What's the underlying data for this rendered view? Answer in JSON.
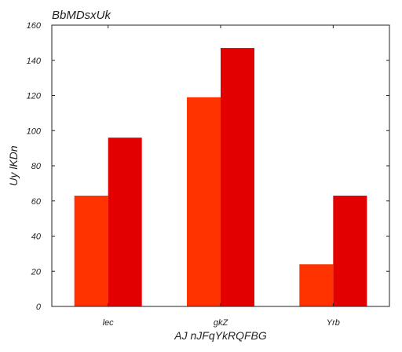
{
  "chart_data": {
    "type": "bar",
    "title": "BbMDsxUk",
    "xlabel": "AJ nJFqYkRQFBG",
    "ylabel": "Uy lKDn",
    "categories": [
      "lec",
      "gkZ",
      "Yrb"
    ],
    "series": [
      {
        "values": [
          63,
          119,
          24
        ],
        "color": "#ff3300"
      },
      {
        "values": [
          96,
          147,
          63
        ],
        "color": "#e30000"
      }
    ],
    "ylim": [
      0,
      160
    ],
    "yticks": [
      0,
      20,
      40,
      60,
      80,
      100,
      120,
      140,
      160
    ],
    "grid": false,
    "legend": "none"
  }
}
